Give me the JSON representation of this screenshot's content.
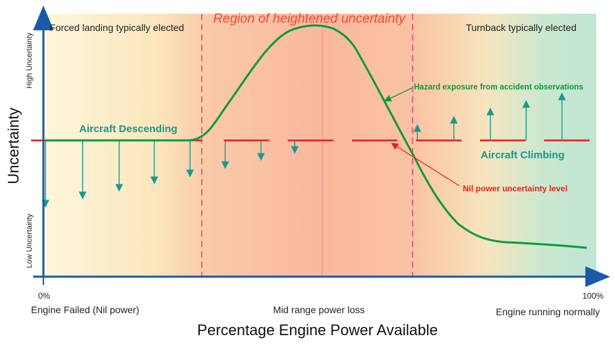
{
  "labels": {
    "region_title": "Region of heightened uncertainty",
    "forced_landing": "Forced landing typically elected",
    "turnback": "Turnback typically elected",
    "descending": "Aircraft Descending",
    "climbing": "Aircraft Climbing",
    "hazard": "Hazard exposure from accident observations",
    "nil_level": "Nil power uncertainty level"
  },
  "axes": {
    "y_title": "Uncertainty",
    "y_high": "High Uncertainty",
    "y_low": "Low Uncertainty",
    "x_title": "Percentage Engine Power Available",
    "x_zero": "0%",
    "x_hundred": "100%",
    "x_left": "Engine Failed (Nil power)",
    "x_mid": "Mid range power loss",
    "x_right": "Engine running normally"
  },
  "colors": {
    "hazard_curve": "#0a9a3c",
    "nil_line": "#e8201e",
    "arrow": "#159a8f",
    "axis": "#1a5aa8",
    "region_title": "#f04a32",
    "boundary": "#e8407a"
  }
}
